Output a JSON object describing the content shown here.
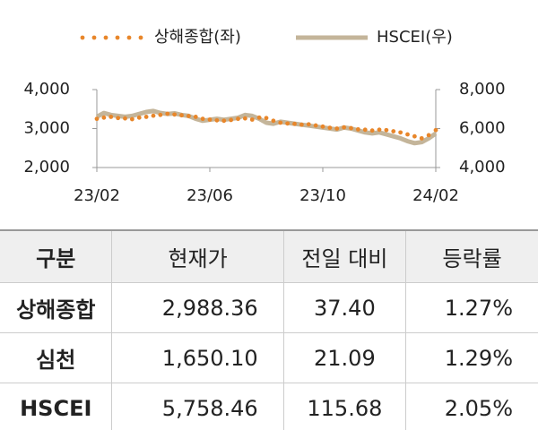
{
  "chart_data": {
    "type": "line",
    "categories": [
      "23/02",
      null,
      null,
      null,
      null,
      null,
      null,
      null,
      null,
      null,
      null,
      null,
      null,
      null,
      null,
      null,
      "23/06",
      null,
      null,
      null,
      null,
      null,
      null,
      null,
      null,
      null,
      null,
      null,
      null,
      null,
      null,
      null,
      "23/10",
      null,
      null,
      null,
      null,
      null,
      null,
      null,
      null,
      null,
      null,
      null,
      null,
      null,
      null,
      null,
      "24/02"
    ],
    "series": [
      {
        "name": "상해종합(좌)",
        "color": "#e8862a",
        "line_style": "dotted",
        "axis": "y",
        "values": [
          3250,
          3280,
          3300,
          3270,
          3260,
          3240,
          3280,
          3300,
          3330,
          3350,
          3380,
          3360,
          3340,
          3320,
          3300,
          3250,
          3230,
          3210,
          3200,
          3220,
          3250,
          3260,
          3230,
          3280,
          3270,
          3200,
          3150,
          3130,
          3120,
          3100,
          3110,
          3080,
          3050,
          3020,
          3000,
          3030,
          3010,
          2980,
          2970,
          2950,
          2970,
          2960,
          2930,
          2900,
          2850,
          2800,
          2750,
          2830,
          2960
        ]
      },
      {
        "name": "HSCEI(우)",
        "color": "#c4b59a",
        "line_style": "solid",
        "axis": "y2",
        "values": [
          6600,
          6800,
          6700,
          6650,
          6600,
          6650,
          6750,
          6850,
          6900,
          6800,
          6750,
          6780,
          6700,
          6650,
          6500,
          6400,
          6450,
          6500,
          6450,
          6500,
          6550,
          6700,
          6650,
          6500,
          6300,
          6250,
          6350,
          6300,
          6250,
          6200,
          6150,
          6100,
          6050,
          6000,
          5950,
          6050,
          6000,
          5900,
          5800,
          5750,
          5800,
          5700,
          5600,
          5500,
          5350,
          5250,
          5300,
          5500,
          5750
        ]
      }
    ],
    "ylim": [
      2000,
      4000
    ],
    "yticks": [
      {
        "value": 2000,
        "label": "2,000"
      },
      {
        "value": 3000,
        "label": "3,000"
      },
      {
        "value": 4000,
        "label": "4,000"
      }
    ],
    "y2lim": [
      4000,
      8000
    ],
    "y2ticks": [
      {
        "value": 4000,
        "label": "4,000"
      },
      {
        "value": 6000,
        "label": "6,000"
      },
      {
        "value": 8000,
        "label": "8,000"
      }
    ]
  },
  "table": {
    "header": [
      "구분",
      "현재가",
      "전일 대비",
      "등락률"
    ],
    "rows": [
      [
        "상해종합",
        "2,988.36",
        "37.40",
        "1.27%"
      ],
      [
        "심천",
        "1,650.10",
        "21.09",
        "1.29%"
      ],
      [
        "HSCEI",
        "5,758.46",
        "115.68",
        "2.05%"
      ]
    ]
  }
}
